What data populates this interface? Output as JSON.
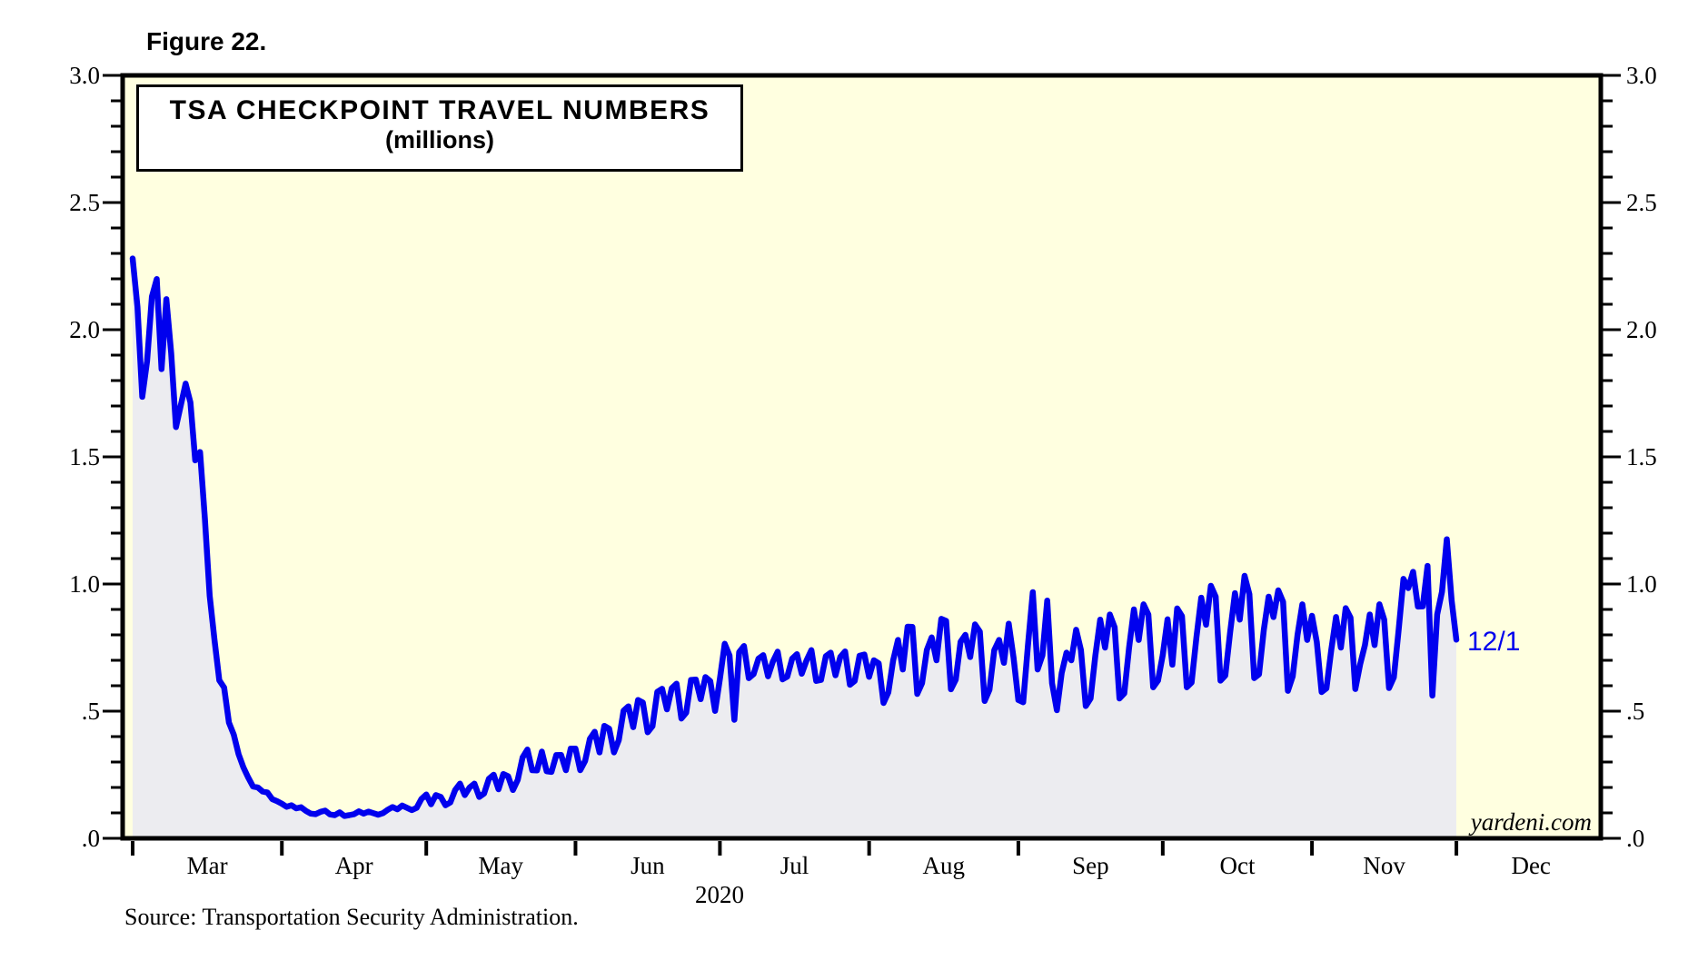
{
  "page": {
    "figure_label": "Figure 22.",
    "source_note": "Source: Transportation Security Administration.",
    "year_label": "2020",
    "watermark": "yardeni.com"
  },
  "title_box": {
    "line1": "TSA CHECKPOINT TRAVEL NUMBERS",
    "line2": "(millions)"
  },
  "colors": {
    "line_blue": "#0000EE",
    "end_label_blue": "#0000EE",
    "plot_background": "#FFFFE0",
    "area_fill": "#ECECF0",
    "frame_black": "#000000",
    "text_black": "#000000",
    "page_background": "#FFFFFF"
  },
  "chart_data": {
    "type": "area",
    "title": "TSA CHECKPOINT TRAVEL NUMBERS",
    "units": "millions",
    "frequency": "daily",
    "start_date": "2020-03-01",
    "end_date": "2020-12-01",
    "x_axis_months": [
      "Mar",
      "Apr",
      "May",
      "Jun",
      "Jul",
      "Aug",
      "Sep",
      "Oct",
      "Nov",
      "Dec"
    ],
    "month_day_counts": [
      31,
      30,
      31,
      30,
      31,
      31,
      30,
      31,
      30,
      31
    ],
    "x_axis_days_total": 305,
    "ylim": [
      0.0,
      3.0
    ],
    "y_major_ticks": [
      3.0,
      2.5,
      2.0,
      1.5,
      1.0,
      0.5,
      0.0
    ],
    "y_tick_labels": [
      "3.0",
      "2.5",
      "2.0",
      "1.5",
      "1.0",
      ".5",
      ".0"
    ],
    "y_minor_step": 0.1,
    "grid": "off",
    "legend": "none",
    "last_point": {
      "date": "2020-12-01",
      "label": "12/1",
      "value": 0.781
    },
    "values": [
      2.28,
      2.09,
      1.736,
      1.877,
      2.13,
      2.199,
      1.845,
      2.12,
      1.909,
      1.617,
      1.703,
      1.788,
      1.714,
      1.486,
      1.519,
      1.258,
      0.954,
      0.78,
      0.621,
      0.593,
      0.455,
      0.408,
      0.331,
      0.279,
      0.239,
      0.204,
      0.2,
      0.184,
      0.18,
      0.154,
      0.146,
      0.136,
      0.124,
      0.13,
      0.118,
      0.122,
      0.108,
      0.097,
      0.095,
      0.104,
      0.109,
      0.094,
      0.091,
      0.102,
      0.088,
      0.091,
      0.095,
      0.106,
      0.097,
      0.105,
      0.099,
      0.093,
      0.099,
      0.112,
      0.123,
      0.114,
      0.129,
      0.12,
      0.111,
      0.12,
      0.155,
      0.172,
      0.134,
      0.17,
      0.163,
      0.13,
      0.141,
      0.19,
      0.215,
      0.17,
      0.2,
      0.215,
      0.163,
      0.176,
      0.234,
      0.25,
      0.193,
      0.253,
      0.244,
      0.19,
      0.23,
      0.318,
      0.349,
      0.268,
      0.267,
      0.341,
      0.264,
      0.261,
      0.327,
      0.328,
      0.268,
      0.353,
      0.353,
      0.268,
      0.304,
      0.391,
      0.419,
      0.338,
      0.442,
      0.431,
      0.338,
      0.386,
      0.502,
      0.519,
      0.437,
      0.544,
      0.534,
      0.417,
      0.441,
      0.576,
      0.588,
      0.507,
      0.59,
      0.608,
      0.471,
      0.494,
      0.623,
      0.624,
      0.547,
      0.634,
      0.618,
      0.501,
      0.627,
      0.765,
      0.719,
      0.466,
      0.732,
      0.756,
      0.63,
      0.646,
      0.706,
      0.72,
      0.637,
      0.695,
      0.734,
      0.625,
      0.636,
      0.706,
      0.724,
      0.647,
      0.7,
      0.74,
      0.619,
      0.623,
      0.716,
      0.73,
      0.641,
      0.713,
      0.735,
      0.604,
      0.619,
      0.718,
      0.723,
      0.635,
      0.7,
      0.688,
      0.532,
      0.574,
      0.7,
      0.78,
      0.664,
      0.832,
      0.831,
      0.568,
      0.61,
      0.741,
      0.79,
      0.7,
      0.863,
      0.855,
      0.586,
      0.624,
      0.773,
      0.8,
      0.713,
      0.841,
      0.813,
      0.54,
      0.584,
      0.74,
      0.78,
      0.69,
      0.844,
      0.711,
      0.544,
      0.535,
      0.76,
      0.968,
      0.664,
      0.72,
      0.935,
      0.61,
      0.504,
      0.65,
      0.73,
      0.7,
      0.82,
      0.74,
      0.52,
      0.55,
      0.72,
      0.86,
      0.75,
      0.88,
      0.83,
      0.55,
      0.57,
      0.75,
      0.9,
      0.78,
      0.92,
      0.88,
      0.594,
      0.62,
      0.72,
      0.861,
      0.683,
      0.904,
      0.874,
      0.594,
      0.613,
      0.79,
      0.946,
      0.84,
      0.993,
      0.95,
      0.62,
      0.64,
      0.81,
      0.964,
      0.86,
      1.032,
      0.96,
      0.63,
      0.645,
      0.82,
      0.95,
      0.87,
      0.975,
      0.93,
      0.58,
      0.637,
      0.8,
      0.92,
      0.78,
      0.875,
      0.772,
      0.575,
      0.59,
      0.74,
      0.87,
      0.75,
      0.905,
      0.868,
      0.587,
      0.684,
      0.76,
      0.88,
      0.76,
      0.92,
      0.86,
      0.591,
      0.633,
      0.82,
      1.02,
      0.984,
      1.048,
      0.911,
      0.912,
      1.071,
      0.561,
      0.88,
      0.97,
      1.176,
      0.936,
      0.781
    ]
  }
}
